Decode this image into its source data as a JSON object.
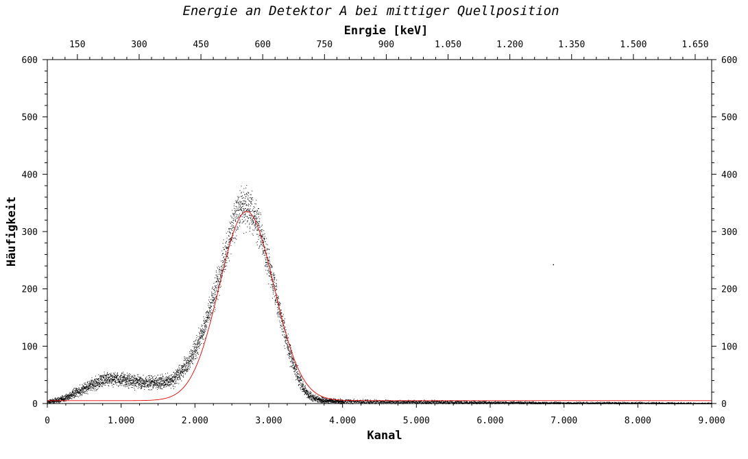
{
  "chart_data": {
    "type": "scatter",
    "title": "Energie an Detektor A bei mittiger Quellposition",
    "xlabel": "Kanal",
    "ylabel": "Häufigkeit",
    "x2label": "Enrgie [keV]",
    "xlim": [
      0,
      9000
    ],
    "ylim": [
      0,
      600
    ],
    "x2lim": [
      77,
      1690
    ],
    "x_ticks": [
      0,
      1000,
      2000,
      3000,
      4000,
      5000,
      6000,
      7000,
      8000,
      9000
    ],
    "x_tick_labels": [
      "0",
      "1.000",
      "2.000",
      "3.000",
      "4.000",
      "5.000",
      "6.000",
      "7.000",
      "8.000",
      "9.000"
    ],
    "y_ticks": [
      0,
      100,
      200,
      300,
      400,
      500,
      600
    ],
    "y_tick_labels": [
      "0",
      "100",
      "200",
      "300",
      "400",
      "500",
      "600"
    ],
    "x2_ticks": [
      150,
      300,
      450,
      600,
      750,
      900,
      1050,
      1200,
      1350,
      1500,
      1650
    ],
    "x2_tick_labels": [
      "150",
      "300",
      "450",
      "600",
      "750",
      "900",
      "1.050",
      "1.200",
      "1.350",
      "1.500",
      "1.650"
    ],
    "grid": false,
    "series": [
      {
        "kind": "scatter",
        "color": "#000000",
        "profile": [
          [
            0,
            3
          ],
          [
            200,
            8
          ],
          [
            400,
            20
          ],
          [
            600,
            33
          ],
          [
            800,
            44
          ],
          [
            1000,
            42
          ],
          [
            1200,
            38
          ],
          [
            1400,
            37
          ],
          [
            1600,
            38
          ],
          [
            1700,
            42
          ],
          [
            1800,
            55
          ],
          [
            1900,
            70
          ],
          [
            2000,
            95
          ],
          [
            2100,
            125
          ],
          [
            2200,
            165
          ],
          [
            2300,
            210
          ],
          [
            2400,
            255
          ],
          [
            2500,
            305
          ],
          [
            2600,
            340
          ],
          [
            2700,
            345
          ],
          [
            2800,
            330
          ],
          [
            2900,
            290
          ],
          [
            3000,
            240
          ],
          [
            3100,
            185
          ],
          [
            3200,
            130
          ],
          [
            3300,
            80
          ],
          [
            3400,
            45
          ],
          [
            3500,
            20
          ],
          [
            3600,
            10
          ],
          [
            3700,
            7
          ],
          [
            3800,
            5
          ],
          [
            4000,
            4
          ],
          [
            5000,
            3
          ],
          [
            6000,
            2
          ],
          [
            7000,
            1
          ],
          [
            8000,
            1
          ],
          [
            9000,
            0
          ]
        ],
        "outliers": [
          [
            6850,
            243
          ]
        ]
      },
      {
        "kind": "fit",
        "color": "#e00000",
        "baseline": 5,
        "amplitude": 330,
        "center": 2700,
        "sigma": 370
      }
    ]
  }
}
